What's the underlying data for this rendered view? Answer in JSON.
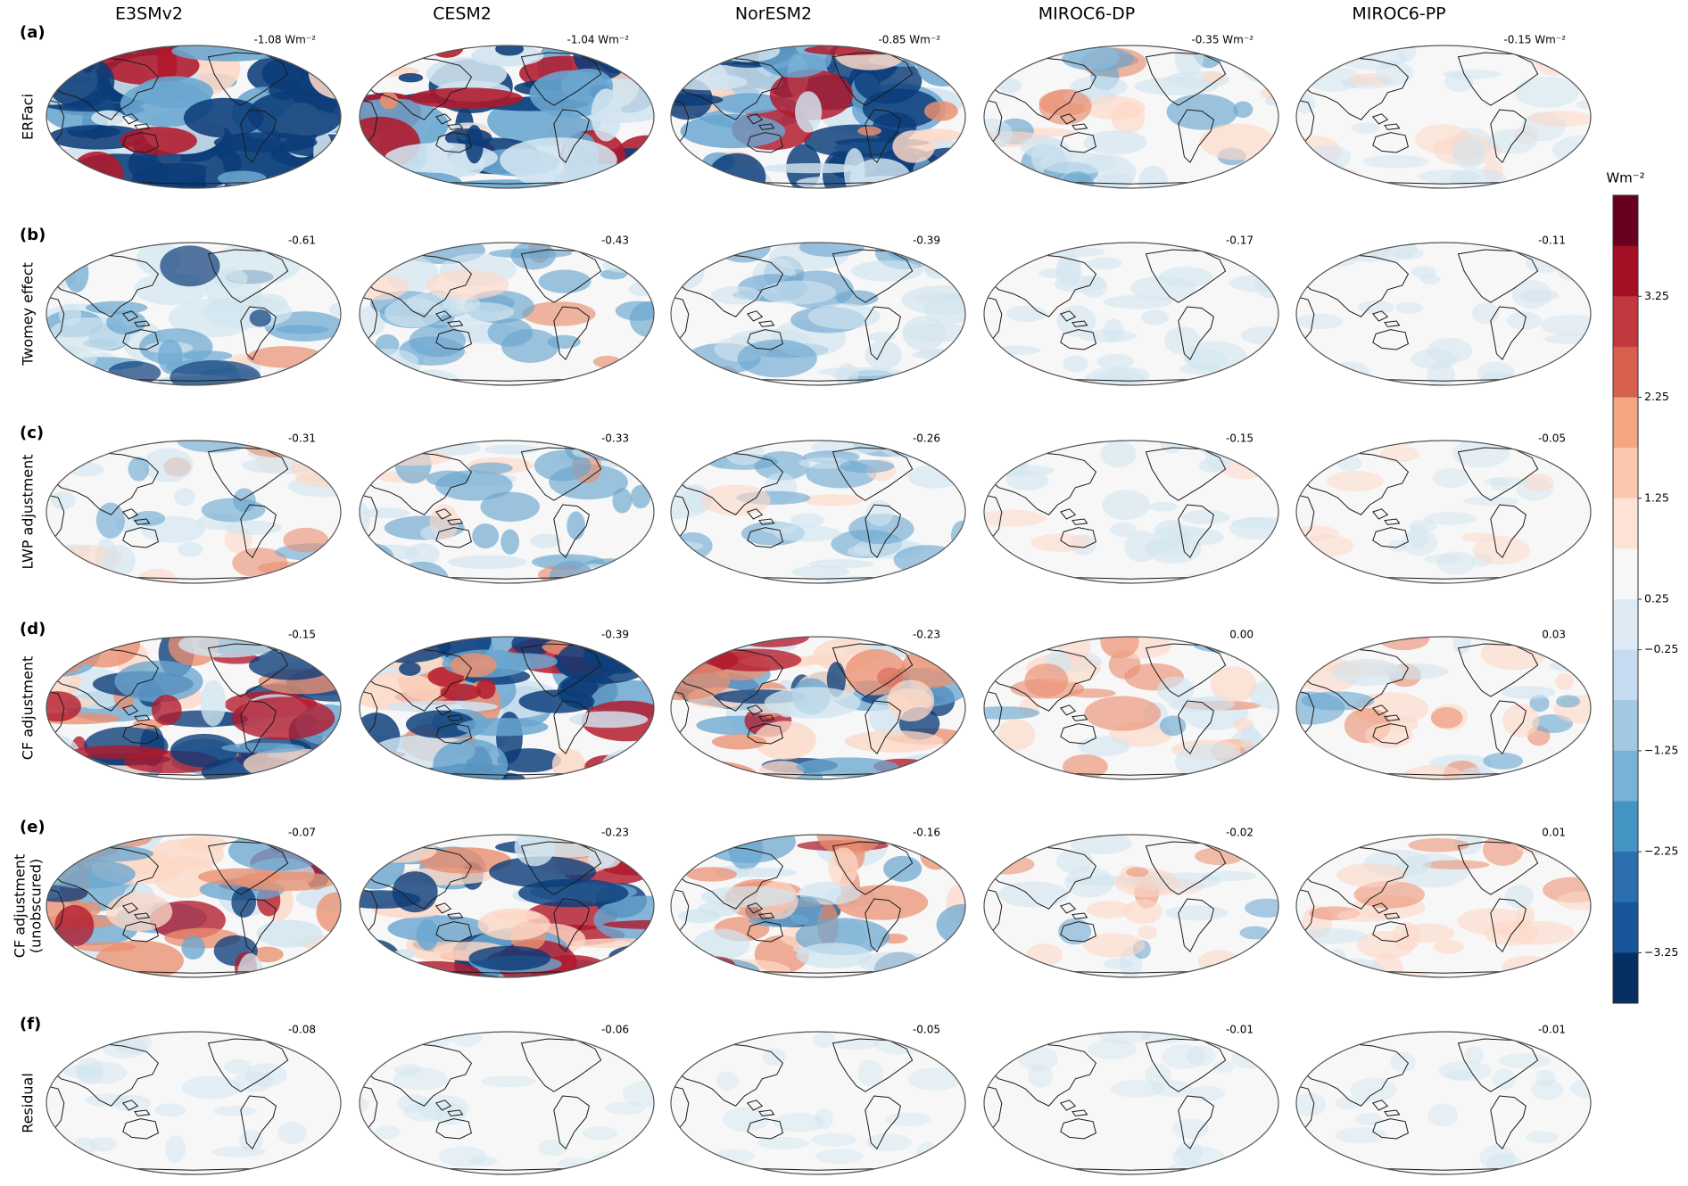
{
  "units": "Wm⁻²",
  "models": [
    "E3SMv2",
    "CESM2",
    "NorESM2",
    "MIROC6-DP",
    "MIROC6-PP"
  ],
  "rows": [
    {
      "tag": "(a)",
      "label": [
        "ERFaci"
      ],
      "values": [
        "-1.08 Wm⁻²",
        "-1.04 Wm⁻²",
        "-0.85 Wm⁻²",
        "-0.35 Wm⁻²",
        "-0.15 Wm⁻²"
      ],
      "intensity": [
        0.95,
        0.95,
        0.85,
        0.45,
        0.25
      ],
      "posfrac": [
        0.12,
        0.28,
        0.18,
        0.3,
        0.35
      ]
    },
    {
      "tag": "(b)",
      "label": [
        "Twomey effect"
      ],
      "values": [
        "-0.61",
        "-0.43",
        "-0.39",
        "-0.17",
        "-0.11"
      ],
      "intensity": [
        0.55,
        0.45,
        0.42,
        0.22,
        0.16
      ],
      "posfrac": [
        0.02,
        0.03,
        0.02,
        0.0,
        0.0
      ]
    },
    {
      "tag": "(c)",
      "label": [
        "LWP adjustment"
      ],
      "values": [
        "-0.31",
        "-0.33",
        "-0.26",
        "-0.15",
        "-0.05"
      ],
      "intensity": [
        0.35,
        0.45,
        0.35,
        0.22,
        0.14
      ],
      "posfrac": [
        0.25,
        0.15,
        0.2,
        0.15,
        0.35
      ]
    },
    {
      "tag": "(d)",
      "label": [
        "CF adjustment"
      ],
      "values": [
        "-0.15",
        "-0.39",
        "-0.23",
        "0.00",
        "0.03"
      ],
      "intensity": [
        0.75,
        0.85,
        0.7,
        0.4,
        0.35
      ],
      "posfrac": [
        0.45,
        0.35,
        0.45,
        0.55,
        0.55
      ]
    },
    {
      "tag": "(e)",
      "label": [
        "CF adjustment",
        "(unobscured)"
      ],
      "values": [
        "-0.07",
        "-0.23",
        "-0.16",
        "-0.02",
        "0.01"
      ],
      "intensity": [
        0.7,
        0.8,
        0.6,
        0.3,
        0.3
      ],
      "posfrac": [
        0.45,
        0.35,
        0.42,
        0.45,
        0.5
      ]
    },
    {
      "tag": "(f)",
      "label": [
        "Residual"
      ],
      "values": [
        "-0.08",
        "-0.06",
        "-0.05",
        "-0.01",
        "-0.01"
      ],
      "intensity": [
        0.08,
        0.06,
        0.05,
        0.02,
        0.02
      ],
      "posfrac": [
        0.0,
        0.0,
        0.0,
        0.0,
        0.0
      ]
    }
  ],
  "colorbar": {
    "unit_label": "Wm⁻²",
    "ticks": [
      "3.25",
      "2.25",
      "1.25",
      "0.25",
      "−0.25",
      "−1.25",
      "−2.25",
      "−3.25"
    ],
    "colors": [
      "#67001f",
      "#a50f26",
      "#c2383e",
      "#d6604d",
      "#f4a582",
      "#fbc8ae",
      "#fde3d6",
      "#f7f7f7",
      "#deebf4",
      "#c6dbef",
      "#a3c8e2",
      "#78b2d6",
      "#4393c3",
      "#2c6faf",
      "#18559b",
      "#053061"
    ]
  },
  "palette": {
    "neg_light": "#d1e5f0",
    "neg_mid": "#6aa6d0",
    "neg_dark": "#0b3c79",
    "pos_light": "#fdd8c6",
    "pos_mid": "#ea8f70",
    "pos_dark": "#b2182b",
    "background": "#f7f7f7",
    "coast": "#1a1a1a"
  }
}
